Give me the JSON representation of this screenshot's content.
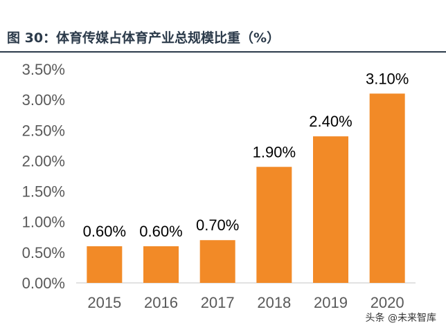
{
  "header": {
    "title": "图 30：体育传媒占体育产业总规模比重（%）"
  },
  "watermark": "头条 @未来智库",
  "colors": {
    "bar": "#f28a27",
    "title": "#2b3a4a",
    "axis": "#d9d9d9",
    "tick_text": "#595959"
  },
  "chart_data": {
    "type": "bar",
    "title": "图 30：体育传媒占体育产业总规模比重（%）",
    "categories": [
      "2015",
      "2016",
      "2017",
      "2018",
      "2019",
      "2020"
    ],
    "values": [
      0.006,
      0.006,
      0.007,
      0.019,
      0.024,
      0.031
    ],
    "data_labels": [
      "0.60%",
      "0.60%",
      "0.70%",
      "1.90%",
      "2.40%",
      "3.10%"
    ],
    "y_ticks": [
      0,
      0.005,
      0.01,
      0.015,
      0.02,
      0.025,
      0.03,
      0.035
    ],
    "y_tick_labels": [
      "0.00%",
      "0.50%",
      "1.00%",
      "1.50%",
      "2.00%",
      "2.50%",
      "3.00%",
      "3.50%"
    ],
    "ylim": [
      0,
      0.035
    ],
    "xlabel": "",
    "ylabel": "",
    "grid": false,
    "legend": "none"
  }
}
